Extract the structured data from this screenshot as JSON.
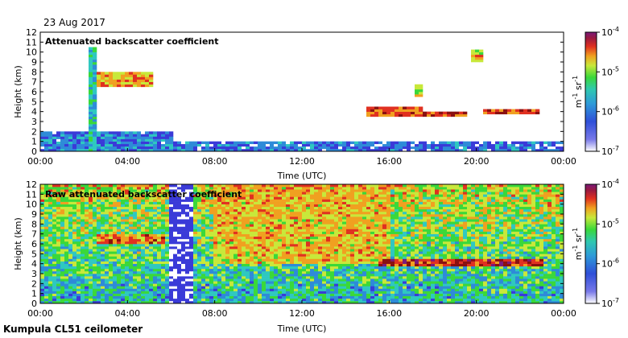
{
  "date_label": "23 Aug 2017",
  "footer_label": "Kumpula CL51 ceilometer",
  "colors": {
    "scale": [
      "#ffffff",
      "#3a3ad8",
      "#2e8bd8",
      "#2fc8c0",
      "#3ad83a",
      "#c8e83a",
      "#f0a020",
      "#e03020",
      "#8a1010",
      "#7a1a7a"
    ]
  },
  "chart_data": [
    {
      "type": "heatmap",
      "title": "Attenuated backscatter coefficient",
      "xlabel": "Time (UTC)",
      "ylabel": "Height (km)",
      "xticks": [
        "00:00",
        "04:00",
        "08:00",
        "12:00",
        "16:00",
        "20:00",
        "00:00"
      ],
      "yticks": [
        "0",
        "1",
        "2",
        "3",
        "4",
        "5",
        "6",
        "7",
        "8",
        "9",
        "10",
        "11",
        "12"
      ],
      "xlim": [
        0,
        24
      ],
      "ylim": [
        0,
        12
      ],
      "colorbar": {
        "scale": "log",
        "range": [
          1e-07,
          0.0001
        ],
        "ticks": [
          {
            "base": "10",
            "exp": "-4"
          },
          {
            "base": "10",
            "exp": "-5"
          },
          {
            "base": "10",
            "exp": "-6"
          },
          {
            "base": "10",
            "exp": "-7"
          }
        ],
        "unit": {
          "a": "m",
          "a_exp": "-1",
          "b": "sr",
          "b_exp": "-1"
        }
      },
      "features": [
        {
          "kind": "boundary_layer",
          "x": [
            0,
            6
          ],
          "y_top": 2.0,
          "level": 0.22
        },
        {
          "kind": "vertical_plume",
          "x": [
            2.3,
            2.6
          ],
          "y": [
            0,
            10.5
          ],
          "level": 0.35
        },
        {
          "kind": "cloud_layer",
          "x": [
            2.6,
            5.2
          ],
          "y": [
            6.5,
            8.0
          ],
          "level": 0.65
        },
        {
          "kind": "cloud_layer",
          "x": [
            15.0,
            17.5
          ],
          "y": [
            3.5,
            4.4
          ],
          "level": 0.7
        },
        {
          "kind": "cloud_layer",
          "x": [
            17.6,
            19.5
          ],
          "y": [
            3.4,
            4.1
          ],
          "level": 0.75
        },
        {
          "kind": "cloud_layer",
          "x": [
            20.3,
            22.8
          ],
          "y": [
            3.7,
            4.3
          ],
          "level": 0.75
        },
        {
          "kind": "cloud_patch",
          "x": [
            19.8,
            20.3
          ],
          "y": [
            9.0,
            10.3
          ],
          "level": 0.6
        },
        {
          "kind": "cloud_patch",
          "x": [
            17.2,
            17.5
          ],
          "y": [
            5.5,
            6.8
          ],
          "level": 0.55
        },
        {
          "kind": "near_surface",
          "x": [
            6,
            24
          ],
          "y_top": 1.0,
          "level": 0.2
        }
      ]
    },
    {
      "type": "heatmap",
      "title": "Raw attenuated backscatter coefficient",
      "xlabel": "Time (UTC)",
      "ylabel": "Height (km)",
      "xticks": [
        "00:00",
        "04:00",
        "08:00",
        "12:00",
        "16:00",
        "20:00",
        "00:00"
      ],
      "yticks": [
        "0",
        "1",
        "2",
        "3",
        "4",
        "5",
        "6",
        "7",
        "8",
        "9",
        "10",
        "11",
        "12"
      ],
      "xlim": [
        0,
        24
      ],
      "ylim": [
        0,
        12
      ],
      "colorbar": {
        "scale": "log",
        "range": [
          1e-07,
          0.0001
        ],
        "ticks": [
          {
            "base": "10",
            "exp": "-4"
          },
          {
            "base": "10",
            "exp": "-5"
          },
          {
            "base": "10",
            "exp": "-6"
          },
          {
            "base": "10",
            "exp": "-7"
          }
        ],
        "unit": {
          "a": "m",
          "a_exp": "-1",
          "b": "sr",
          "b_exp": "-1"
        }
      },
      "features": [
        {
          "kind": "noise_field",
          "x": [
            0,
            24
          ],
          "y": [
            0,
            12
          ]
        },
        {
          "kind": "daytime_noise",
          "x": [
            8,
            16
          ],
          "y": [
            4,
            12
          ],
          "level": 0.6
        },
        {
          "kind": "vertical_plume",
          "x": [
            2.3,
            2.6
          ],
          "y": [
            0,
            12
          ],
          "level": 0.3
        },
        {
          "kind": "cloud_layer",
          "x": [
            2.6,
            5.8
          ],
          "y": [
            6.0,
            7.0
          ],
          "level": 0.7
        },
        {
          "kind": "cloud_layer",
          "x": [
            15.5,
            23.0
          ],
          "y": [
            3.8,
            4.4
          ],
          "level": 0.8
        },
        {
          "kind": "clear_band",
          "x": [
            5.9,
            7.0
          ],
          "y": [
            0,
            12
          ]
        }
      ]
    }
  ]
}
